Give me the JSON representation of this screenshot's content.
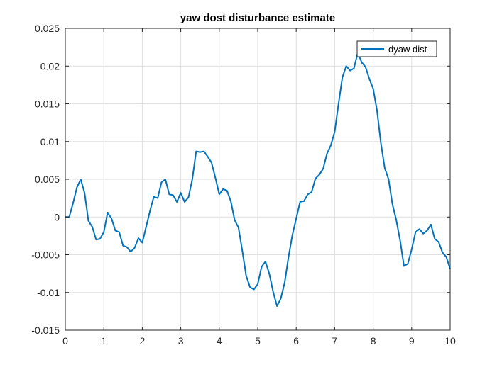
{
  "chart_data": {
    "type": "line",
    "title": "yaw dost disturbance estimate",
    "xlabel": "",
    "ylabel": "",
    "xlim": [
      0,
      10
    ],
    "ylim": [
      -0.015,
      0.025
    ],
    "xticks": [
      0,
      1,
      2,
      3,
      4,
      5,
      6,
      7,
      8,
      9,
      10
    ],
    "yticks": [
      -0.015,
      -0.01,
      -0.005,
      0,
      0.005,
      0.01,
      0.015,
      0.02,
      0.025
    ],
    "xtick_labels": [
      "0",
      "1",
      "2",
      "3",
      "4",
      "5",
      "6",
      "7",
      "8",
      "9",
      "10"
    ],
    "ytick_labels": [
      "-0.015",
      "-0.01",
      "-0.005",
      "0",
      "0.005",
      "0.01",
      "0.015",
      "0.02",
      "0.025"
    ],
    "grid": true,
    "legend_position": "top-right",
    "series": [
      {
        "name": "dyaw dist",
        "color": "#0072BD",
        "x": [
          0,
          0.1,
          0.2,
          0.3,
          0.4,
          0.5,
          0.6,
          0.7,
          0.8,
          0.9,
          1.0,
          1.1,
          1.2,
          1.3,
          1.4,
          1.5,
          1.6,
          1.7,
          1.8,
          1.9,
          2.0,
          2.1,
          2.2,
          2.3,
          2.4,
          2.5,
          2.6,
          2.7,
          2.8,
          2.9,
          3.0,
          3.1,
          3.2,
          3.3,
          3.4,
          3.5,
          3.6,
          3.7,
          3.8,
          3.9,
          4.0,
          4.1,
          4.2,
          4.3,
          4.4,
          4.5,
          4.6,
          4.7,
          4.8,
          4.9,
          5.0,
          5.1,
          5.2,
          5.3,
          5.4,
          5.5,
          5.6,
          5.7,
          5.8,
          5.9,
          6.0,
          6.1,
          6.2,
          6.3,
          6.4,
          6.5,
          6.6,
          6.7,
          6.8,
          6.9,
          7.0,
          7.1,
          7.2,
          7.3,
          7.4,
          7.5,
          7.6,
          7.7,
          7.8,
          7.9,
          8.0,
          8.1,
          8.2,
          8.3,
          8.4,
          8.5,
          8.6,
          8.7,
          8.8,
          8.9,
          9.0,
          9.1,
          9.2,
          9.3,
          9.4,
          9.5,
          9.6,
          9.7,
          9.8,
          9.9,
          10.0
        ],
        "y": [
          0,
          0,
          0.0018,
          0.0039,
          0.005,
          0.0032,
          -0.0005,
          -0.0013,
          -0.003,
          -0.0029,
          -0.002,
          0.0006,
          -0.0002,
          -0.0018,
          -0.002,
          -0.0038,
          -0.004,
          -0.0046,
          -0.0041,
          -0.0028,
          -0.0034,
          -0.0013,
          0.0008,
          0.0027,
          0.0025,
          0.0046,
          0.005,
          0.003,
          0.0029,
          0.002,
          0.0032,
          0.002,
          0.0026,
          0.005,
          0.0087,
          0.0086,
          0.0087,
          0.008,
          0.0072,
          0.0052,
          0.003,
          0.0037,
          0.0035,
          0.0021,
          -0.0004,
          -0.0014,
          -0.0045,
          -0.0078,
          -0.0093,
          -0.0096,
          -0.0089,
          -0.0066,
          -0.0059,
          -0.0075,
          -0.0099,
          -0.0118,
          -0.0108,
          -0.0087,
          -0.0053,
          -0.0024,
          -0.0002,
          0.002,
          0.0021,
          0.003,
          0.0033,
          0.0051,
          0.0056,
          0.0064,
          0.0084,
          0.0095,
          0.0113,
          0.015,
          0.0185,
          0.02,
          0.0194,
          0.0197,
          0.0218,
          0.0205,
          0.0199,
          0.0183,
          0.017,
          0.0141,
          0.0098,
          0.0065,
          0.005,
          0.0017,
          -0.0004,
          -0.0031,
          -0.0065,
          -0.0062,
          -0.0043,
          -0.002,
          -0.0016,
          -0.0022,
          -0.0018,
          -0.001,
          -0.0029,
          -0.0033,
          -0.0047,
          -0.0053,
          -0.0069
        ]
      }
    ]
  }
}
